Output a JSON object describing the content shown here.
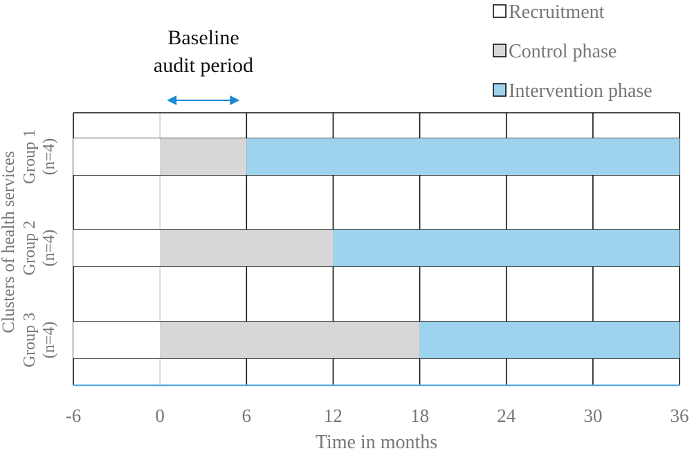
{
  "chart_data": {
    "type": "bar",
    "subtype": "stepped-wedge timeline",
    "xlabel": "Time in months",
    "ylabel": "Clusters of health services",
    "xlim": [
      -6,
      36
    ],
    "xticks": [
      -6,
      0,
      6,
      12,
      18,
      24,
      30,
      36
    ],
    "grid": true,
    "legend_position": "top-right",
    "legend": [
      {
        "name": "Recruitment",
        "color": "#ffffff"
      },
      {
        "name": "Control phase",
        "color": "#d9d6d7"
      },
      {
        "name": "Intervention phase",
        "color": "#9ed3ee"
      }
    ],
    "groups": [
      {
        "label": "Group 1",
        "n": "(n=4)",
        "segments": [
          {
            "phase": "Recruitment",
            "start": -6,
            "end": 0
          },
          {
            "phase": "Control phase",
            "start": 0,
            "end": 6
          },
          {
            "phase": "Intervention phase",
            "start": 6,
            "end": 36
          }
        ]
      },
      {
        "label": "Group 2",
        "n": "(n=4)",
        "segments": [
          {
            "phase": "Recruitment",
            "start": -6,
            "end": 0
          },
          {
            "phase": "Control phase",
            "start": 0,
            "end": 12
          },
          {
            "phase": "Intervention phase",
            "start": 12,
            "end": 36
          }
        ]
      },
      {
        "label": "Group 3",
        "n": "(n=4)",
        "segments": [
          {
            "phase": "Recruitment",
            "start": -6,
            "end": 0
          },
          {
            "phase": "Control phase",
            "start": 0,
            "end": 18
          },
          {
            "phase": "Intervention phase",
            "start": 18,
            "end": 36
          }
        ]
      }
    ],
    "annotation": {
      "lines": [
        "Baseline",
        "audit period"
      ],
      "from": 0,
      "to": 6,
      "arrow_color": "#1a8ad0"
    },
    "colors": {
      "axis": "#5aaedc",
      "grid": "#111111",
      "zero_line": "#cccccc"
    }
  }
}
